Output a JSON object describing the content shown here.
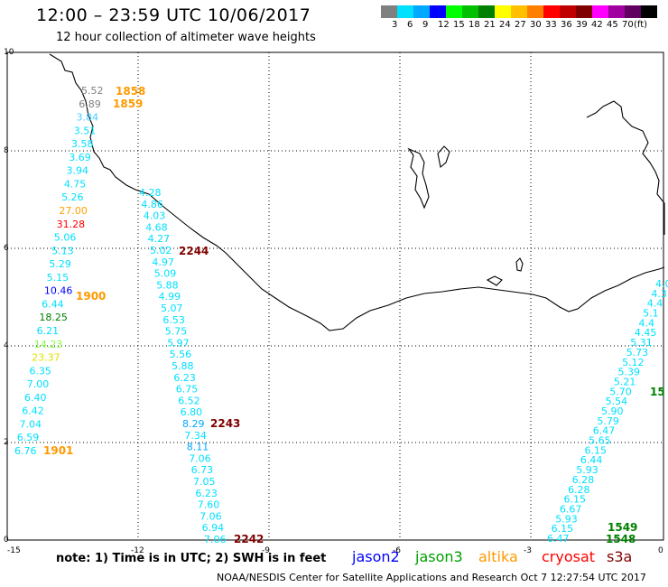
{
  "header": {
    "title": "12:00 – 23:59 UTC 10/06/2017",
    "subtitle": "12 hour collection of altimeter wave heights"
  },
  "legend": {
    "colors": [
      "#808080",
      "#00e0ff",
      "#00a8ff",
      "#0000ff",
      "#00ff00",
      "#00c000",
      "#008000",
      "#ffff00",
      "#ffc000",
      "#ff8000",
      "#ff0000",
      "#c00000",
      "#800000",
      "#ff00ff",
      "#a000a0",
      "#600060",
      "#000000"
    ],
    "labels": [
      "3",
      "6",
      "9",
      "12",
      "15",
      "18",
      "21",
      "24",
      "27",
      "30",
      "33",
      "36",
      "39",
      "42",
      "45",
      "70"
    ],
    "unit": "(ft)"
  },
  "axes": {
    "x_ticks": [
      "-15",
      "-12",
      "-9",
      "-6",
      "-3",
      "0"
    ],
    "y_ticks": [
      "0",
      "2",
      "4",
      "6",
      "8",
      "10"
    ]
  },
  "map_data": {
    "track_west": [
      {
        "v": "5.52",
        "c": "#808080"
      },
      {
        "v": "6.89",
        "c": "#808080"
      },
      {
        "v": "3.84",
        "c": "#40d0ff"
      },
      {
        "v": "3.51",
        "c": "#00e0ff"
      },
      {
        "v": "3.58",
        "c": "#00e0ff"
      },
      {
        "v": "3.69",
        "c": "#00e0ff"
      },
      {
        "v": "3.94",
        "c": "#00e0ff"
      },
      {
        "v": "4.75",
        "c": "#00e0ff"
      },
      {
        "v": "5.26",
        "c": "#00e0ff"
      },
      {
        "v": "27.00",
        "c": "#ffa000"
      },
      {
        "v": "31.28",
        "c": "#ff0000"
      },
      {
        "v": "5.06",
        "c": "#00e0ff"
      },
      {
        "v": "5.13",
        "c": "#00e0ff"
      },
      {
        "v": "5.29",
        "c": "#00e0ff"
      },
      {
        "v": "5.15",
        "c": "#00e0ff"
      },
      {
        "v": "10.46",
        "c": "#0000ff"
      },
      {
        "v": "6.44",
        "c": "#00e0ff"
      },
      {
        "v": "18.25",
        "c": "#008000"
      },
      {
        "v": "6.21",
        "c": "#00e0ff"
      },
      {
        "v": "14.23",
        "c": "#80ff40"
      },
      {
        "v": "23.37",
        "c": "#e0e000"
      },
      {
        "v": "6.35",
        "c": "#00e0ff"
      },
      {
        "v": "7.00",
        "c": "#00e0ff"
      },
      {
        "v": "6.40",
        "c": "#00e0ff"
      },
      {
        "v": "6.42",
        "c": "#00e0ff"
      },
      {
        "v": "7.04",
        "c": "#00e0ff"
      },
      {
        "v": "6.59",
        "c": "#00e0ff"
      },
      {
        "v": "6.76",
        "c": "#00e0ff"
      }
    ],
    "track_middle": [
      {
        "v": "4.28",
        "c": "#00e0ff"
      },
      {
        "v": "4.86",
        "c": "#00e0ff"
      },
      {
        "v": "4.03",
        "c": "#00e0ff"
      },
      {
        "v": "4.68",
        "c": "#00e0ff"
      },
      {
        "v": "4.27",
        "c": "#00e0ff"
      },
      {
        "v": "5.02",
        "c": "#00e0ff"
      },
      {
        "v": "4.97",
        "c": "#00e0ff"
      },
      {
        "v": "5.09",
        "c": "#00e0ff"
      },
      {
        "v": "5.88",
        "c": "#00e0ff"
      },
      {
        "v": "4.99",
        "c": "#00e0ff"
      },
      {
        "v": "5.07",
        "c": "#00e0ff"
      },
      {
        "v": "6.53",
        "c": "#00e0ff"
      },
      {
        "v": "5.75",
        "c": "#00e0ff"
      },
      {
        "v": "5.97",
        "c": "#00e0ff"
      },
      {
        "v": "5.56",
        "c": "#00e0ff"
      },
      {
        "v": "5.88",
        "c": "#00e0ff"
      },
      {
        "v": "6.23",
        "c": "#00e0ff"
      },
      {
        "v": "6.75",
        "c": "#00e0ff"
      },
      {
        "v": "6.52",
        "c": "#00e0ff"
      },
      {
        "v": "6.80",
        "c": "#00e0ff"
      },
      {
        "v": "8.29",
        "c": "#00a8ff"
      },
      {
        "v": "7.34",
        "c": "#00e0ff"
      },
      {
        "v": "8.11",
        "c": "#00a8ff"
      },
      {
        "v": "7.06",
        "c": "#00e0ff"
      },
      {
        "v": "6.73",
        "c": "#00e0ff"
      },
      {
        "v": "7.05",
        "c": "#00e0ff"
      },
      {
        "v": "6.23",
        "c": "#00e0ff"
      },
      {
        "v": "7.60",
        "c": "#00e0ff"
      },
      {
        "v": "7.06",
        "c": "#00e0ff"
      },
      {
        "v": "6.94",
        "c": "#00e0ff"
      },
      {
        "v": "7.06",
        "c": "#00e0ff"
      }
    ],
    "track_east": [
      {
        "v": "4.0",
        "c": "#00e0ff"
      },
      {
        "v": "4.3",
        "c": "#00e0ff"
      },
      {
        "v": "4.4",
        "c": "#00e0ff"
      },
      {
        "v": "5.1",
        "c": "#00e0ff"
      },
      {
        "v": "4.4",
        "c": "#00e0ff"
      },
      {
        "v": "4.45",
        "c": "#00e0ff"
      },
      {
        "v": "5.31",
        "c": "#00e0ff"
      },
      {
        "v": "5.73",
        "c": "#00e0ff"
      },
      {
        "v": "5.12",
        "c": "#00e0ff"
      },
      {
        "v": "5.39",
        "c": "#00e0ff"
      },
      {
        "v": "5.21",
        "c": "#00e0ff"
      },
      {
        "v": "5.70",
        "c": "#00e0ff"
      },
      {
        "v": "5.54",
        "c": "#00e0ff"
      },
      {
        "v": "5.90",
        "c": "#00e0ff"
      },
      {
        "v": "5.79",
        "c": "#00e0ff"
      },
      {
        "v": "6.47",
        "c": "#00e0ff"
      },
      {
        "v": "5.65",
        "c": "#00e0ff"
      },
      {
        "v": "6.15",
        "c": "#00e0ff"
      },
      {
        "v": "6.44",
        "c": "#00e0ff"
      },
      {
        "v": "5.93",
        "c": "#00e0ff"
      },
      {
        "v": "6.28",
        "c": "#00e0ff"
      },
      {
        "v": "6.28",
        "c": "#00e0ff"
      },
      {
        "v": "6.15",
        "c": "#00e0ff"
      },
      {
        "v": "6.67",
        "c": "#00e0ff"
      },
      {
        "v": "5.93",
        "c": "#00e0ff"
      },
      {
        "v": "6.15",
        "c": "#00e0ff"
      },
      {
        "v": "6.47",
        "c": "#00e0ff"
      }
    ],
    "times": [
      {
        "t": "1858",
        "c": "#ff9900"
      },
      {
        "t": "1859",
        "c": "#ff9900"
      },
      {
        "t": "1900",
        "c": "#ff9900"
      },
      {
        "t": "1901",
        "c": "#ff9900"
      },
      {
        "t": "2244",
        "c": "#800000"
      },
      {
        "t": "2243",
        "c": "#800000"
      },
      {
        "t": "2242",
        "c": "#800000"
      },
      {
        "t": "1549",
        "c": "#008000"
      },
      {
        "t": "1548",
        "c": "#008000"
      },
      {
        "t": "15",
        "c": "#008000"
      }
    ]
  },
  "note": "note:  1) Time is in UTC;  2) SWH is in feet",
  "satellites": [
    {
      "name": "jason2",
      "color": "#0000ff"
    },
    {
      "name": "jason3",
      "color": "#00a000"
    },
    {
      "name": "altika",
      "color": "#ff9900"
    },
    {
      "name": "cryosat",
      "color": "#ff0000"
    },
    {
      "name": "s3a",
      "color": "#800000"
    }
  ],
  "footer": "NOAA/NESDIS Center for Satellite Applications and Research    Oct  7 12:27:54 UTC 2017"
}
